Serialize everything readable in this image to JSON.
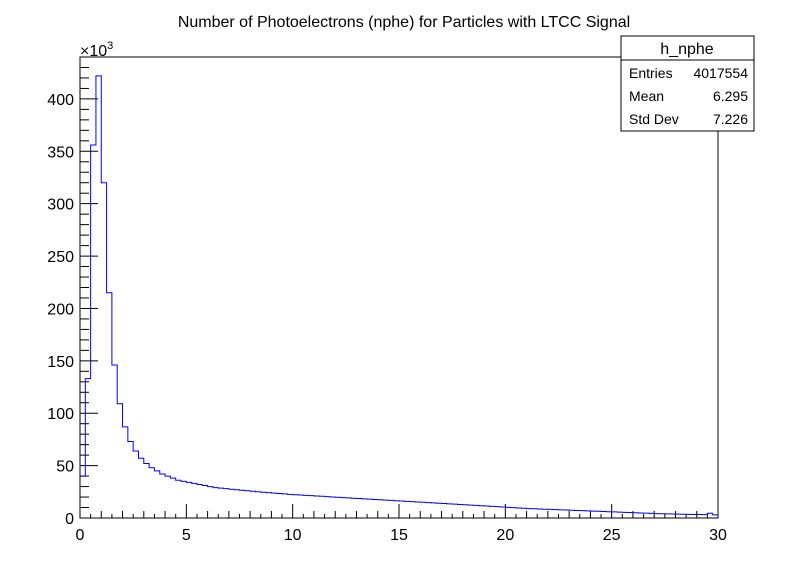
{
  "chart_data": {
    "type": "histogram",
    "title": "Number of Photoelectrons (nphe) for Particles with LTCC Signal",
    "y_multiplier_label": "×10",
    "y_multiplier_exponent": "3",
    "xlim": [
      0,
      30
    ],
    "ylim": [
      0,
      440
    ],
    "x_ticks": [
      "0",
      "5",
      "10",
      "15",
      "20",
      "25",
      "30"
    ],
    "y_ticks": [
      "0",
      "50",
      "100",
      "150",
      "200",
      "250",
      "300",
      "350",
      "400"
    ],
    "bin_width": 0.25,
    "line_color": "#0000ff",
    "values": [
      40,
      133,
      356,
      422,
      320,
      215,
      146,
      109,
      87,
      73,
      64,
      57,
      52,
      48,
      45,
      42,
      40,
      38,
      36,
      35,
      34,
      33,
      32,
      31,
      30,
      29,
      28.5,
      28,
      27.5,
      27,
      26.5,
      26,
      25.5,
      25,
      24.6,
      24.2,
      23.8,
      23.4,
      23,
      22.6,
      22.2,
      21.9,
      21.6,
      21.3,
      21,
      20.7,
      20.4,
      20.1,
      19.8,
      19.5,
      19.2,
      18.9,
      18.6,
      18.3,
      18,
      17.7,
      17.4,
      17.1,
      16.8,
      16.5,
      16.2,
      15.9,
      15.6,
      15.3,
      15,
      14.7,
      14.4,
      14.1,
      13.8,
      13.5,
      13.2,
      12.9,
      12.6,
      12.3,
      12,
      11.7,
      11.4,
      11.1,
      10.8,
      10.5,
      10.2,
      9.9,
      9.6,
      9.3,
      9,
      8.8,
      8.6,
      8.4,
      8.2,
      8,
      7.8,
      7.6,
      7.4,
      7.2,
      7,
      6.8,
      6.6,
      6.4,
      6.2,
      6,
      5.8,
      5.6,
      5.4,
      5.2,
      5,
      4.8,
      4.6,
      4.4,
      4.2,
      4,
      3.9,
      3.8,
      3.7,
      3.6,
      3.5,
      3.4,
      3.3,
      3.2,
      4.5,
      3
    ],
    "stats": {
      "name": "h_nphe",
      "rows": [
        {
          "label": "Entries",
          "value": "4017554"
        },
        {
          "label": "Mean",
          "value": "6.295"
        },
        {
          "label": "Std Dev",
          "value": "7.226"
        }
      ]
    }
  }
}
